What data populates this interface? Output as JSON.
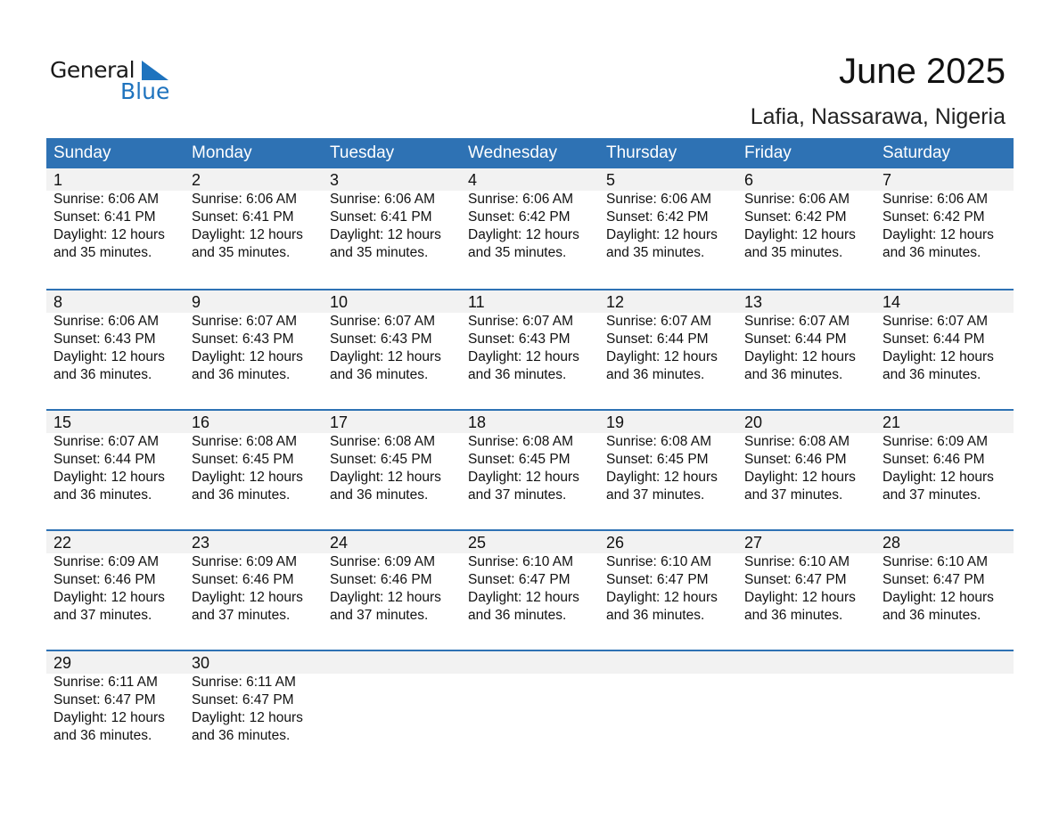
{
  "logo": {
    "line1": "General",
    "line2": "Blue"
  },
  "title": "June 2025",
  "subtitle": "Lafia, Nassarawa, Nigeria",
  "colors": {
    "header": "#2e72b4",
    "band": "#f2f2f2",
    "logo_blue": "#1e73be"
  },
  "weekdays": [
    "Sunday",
    "Monday",
    "Tuesday",
    "Wednesday",
    "Thursday",
    "Friday",
    "Saturday"
  ],
  "days": [
    {
      "d": "1",
      "sr": "Sunrise: 6:06 AM",
      "ss": "Sunset: 6:41 PM",
      "dl": "Daylight: 12 hours",
      "m": "and 35 minutes."
    },
    {
      "d": "2",
      "sr": "Sunrise: 6:06 AM",
      "ss": "Sunset: 6:41 PM",
      "dl": "Daylight: 12 hours",
      "m": "and 35 minutes."
    },
    {
      "d": "3",
      "sr": "Sunrise: 6:06 AM",
      "ss": "Sunset: 6:41 PM",
      "dl": "Daylight: 12 hours",
      "m": "and 35 minutes."
    },
    {
      "d": "4",
      "sr": "Sunrise: 6:06 AM",
      "ss": "Sunset: 6:42 PM",
      "dl": "Daylight: 12 hours",
      "m": "and 35 minutes."
    },
    {
      "d": "5",
      "sr": "Sunrise: 6:06 AM",
      "ss": "Sunset: 6:42 PM",
      "dl": "Daylight: 12 hours",
      "m": "and 35 minutes."
    },
    {
      "d": "6",
      "sr": "Sunrise: 6:06 AM",
      "ss": "Sunset: 6:42 PM",
      "dl": "Daylight: 12 hours",
      "m": "and 35 minutes."
    },
    {
      "d": "7",
      "sr": "Sunrise: 6:06 AM",
      "ss": "Sunset: 6:42 PM",
      "dl": "Daylight: 12 hours",
      "m": "and 36 minutes."
    },
    {
      "d": "8",
      "sr": "Sunrise: 6:06 AM",
      "ss": "Sunset: 6:43 PM",
      "dl": "Daylight: 12 hours",
      "m": "and 36 minutes."
    },
    {
      "d": "9",
      "sr": "Sunrise: 6:07 AM",
      "ss": "Sunset: 6:43 PM",
      "dl": "Daylight: 12 hours",
      "m": "and 36 minutes."
    },
    {
      "d": "10",
      "sr": "Sunrise: 6:07 AM",
      "ss": "Sunset: 6:43 PM",
      "dl": "Daylight: 12 hours",
      "m": "and 36 minutes."
    },
    {
      "d": "11",
      "sr": "Sunrise: 6:07 AM",
      "ss": "Sunset: 6:43 PM",
      "dl": "Daylight: 12 hours",
      "m": "and 36 minutes."
    },
    {
      "d": "12",
      "sr": "Sunrise: 6:07 AM",
      "ss": "Sunset: 6:44 PM",
      "dl": "Daylight: 12 hours",
      "m": "and 36 minutes."
    },
    {
      "d": "13",
      "sr": "Sunrise: 6:07 AM",
      "ss": "Sunset: 6:44 PM",
      "dl": "Daylight: 12 hours",
      "m": "and 36 minutes."
    },
    {
      "d": "14",
      "sr": "Sunrise: 6:07 AM",
      "ss": "Sunset: 6:44 PM",
      "dl": "Daylight: 12 hours",
      "m": "and 36 minutes."
    },
    {
      "d": "15",
      "sr": "Sunrise: 6:07 AM",
      "ss": "Sunset: 6:44 PM",
      "dl": "Daylight: 12 hours",
      "m": "and 36 minutes."
    },
    {
      "d": "16",
      "sr": "Sunrise: 6:08 AM",
      "ss": "Sunset: 6:45 PM",
      "dl": "Daylight: 12 hours",
      "m": "and 36 minutes."
    },
    {
      "d": "17",
      "sr": "Sunrise: 6:08 AM",
      "ss": "Sunset: 6:45 PM",
      "dl": "Daylight: 12 hours",
      "m": "and 36 minutes."
    },
    {
      "d": "18",
      "sr": "Sunrise: 6:08 AM",
      "ss": "Sunset: 6:45 PM",
      "dl": "Daylight: 12 hours",
      "m": "and 37 minutes."
    },
    {
      "d": "19",
      "sr": "Sunrise: 6:08 AM",
      "ss": "Sunset: 6:45 PM",
      "dl": "Daylight: 12 hours",
      "m": "and 37 minutes."
    },
    {
      "d": "20",
      "sr": "Sunrise: 6:08 AM",
      "ss": "Sunset: 6:46 PM",
      "dl": "Daylight: 12 hours",
      "m": "and 37 minutes."
    },
    {
      "d": "21",
      "sr": "Sunrise: 6:09 AM",
      "ss": "Sunset: 6:46 PM",
      "dl": "Daylight: 12 hours",
      "m": "and 37 minutes."
    },
    {
      "d": "22",
      "sr": "Sunrise: 6:09 AM",
      "ss": "Sunset: 6:46 PM",
      "dl": "Daylight: 12 hours",
      "m": "and 37 minutes."
    },
    {
      "d": "23",
      "sr": "Sunrise: 6:09 AM",
      "ss": "Sunset: 6:46 PM",
      "dl": "Daylight: 12 hours",
      "m": "and 37 minutes."
    },
    {
      "d": "24",
      "sr": "Sunrise: 6:09 AM",
      "ss": "Sunset: 6:46 PM",
      "dl": "Daylight: 12 hours",
      "m": "and 37 minutes."
    },
    {
      "d": "25",
      "sr": "Sunrise: 6:10 AM",
      "ss": "Sunset: 6:47 PM",
      "dl": "Daylight: 12 hours",
      "m": "and 36 minutes."
    },
    {
      "d": "26",
      "sr": "Sunrise: 6:10 AM",
      "ss": "Sunset: 6:47 PM",
      "dl": "Daylight: 12 hours",
      "m": "and 36 minutes."
    },
    {
      "d": "27",
      "sr": "Sunrise: 6:10 AM",
      "ss": "Sunset: 6:47 PM",
      "dl": "Daylight: 12 hours",
      "m": "and 36 minutes."
    },
    {
      "d": "28",
      "sr": "Sunrise: 6:10 AM",
      "ss": "Sunset: 6:47 PM",
      "dl": "Daylight: 12 hours",
      "m": "and 36 minutes."
    },
    {
      "d": "29",
      "sr": "Sunrise: 6:11 AM",
      "ss": "Sunset: 6:47 PM",
      "dl": "Daylight: 12 hours",
      "m": "and 36 minutes."
    },
    {
      "d": "30",
      "sr": "Sunrise: 6:11 AM",
      "ss": "Sunset: 6:47 PM",
      "dl": "Daylight: 12 hours",
      "m": "and 36 minutes."
    }
  ]
}
